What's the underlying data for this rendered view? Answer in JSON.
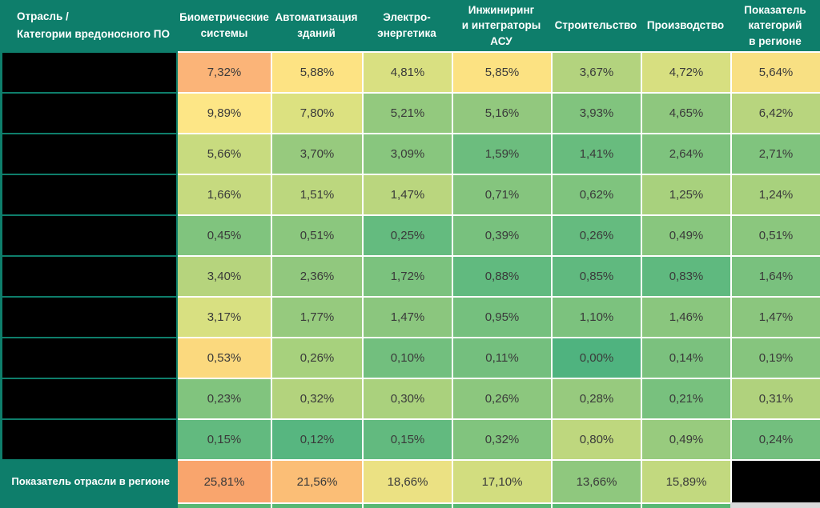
{
  "colors": {
    "header_bg": "#0E7E6B",
    "teal_border": "#11806A",
    "grid_line": "#FFFFFF",
    "redacted_black": "#000000",
    "header_text": "#FFFFFF",
    "cell_text": "#3A3A3A",
    "strip_green": "#57B873",
    "strip_gray": "#D9D9D9"
  },
  "header": {
    "corner": "Отрасль /\nКатегории вредоносного ПО",
    "columns": [
      "Биометрические\nсистемы",
      "Автоматизация\nзданий",
      "Электро-\nэнергетика",
      "Инжиниринг\nи интеграторы АСУ",
      "Строительство",
      "Производство",
      "Показатель\nкатегорий\nв регионе"
    ]
  },
  "rows": [
    {
      "label_redacted": true,
      "values": [
        "7,32%",
        "5,88%",
        "4,81%",
        "5,85%",
        "3,67%",
        "4,72%",
        "5,64%"
      ],
      "colors": [
        "#FBB478",
        "#FDE383",
        "#D9E081",
        "#FCE282",
        "#B3D37E",
        "#D7DF80",
        "#F8E083"
      ]
    },
    {
      "label_redacted": true,
      "values": [
        "9,89%",
        "7,80%",
        "5,21%",
        "5,16%",
        "3,93%",
        "4,65%",
        "6,42%"
      ],
      "colors": [
        "#FDE686",
        "#DCE180",
        "#93C97E",
        "#92C87E",
        "#81C47E",
        "#8EC77E",
        "#B8D57E"
      ]
    },
    {
      "label_redacted": true,
      "values": [
        "5,66%",
        "3,70%",
        "3,09%",
        "1,59%",
        "1,41%",
        "2,64%",
        "2,71%"
      ],
      "colors": [
        "#C8DB7F",
        "#97CA7E",
        "#88C67E",
        "#6CBD7E",
        "#68BC7E",
        "#7EC37E",
        "#80C47E"
      ]
    },
    {
      "label_redacted": true,
      "values": [
        "1,66%",
        "1,51%",
        "1,47%",
        "0,71%",
        "0,62%",
        "1,25%",
        "1,24%"
      ],
      "colors": [
        "#C6DA7F",
        "#BCD77E",
        "#BAD67E",
        "#85C57E",
        "#7FC47E",
        "#A8D17D",
        "#A8D17D"
      ]
    },
    {
      "label_redacted": true,
      "values": [
        "0,45%",
        "0,51%",
        "0,25%",
        "0,39%",
        "0,26%",
        "0,49%",
        "0,51%"
      ],
      "colors": [
        "#80C47E",
        "#8BC77E",
        "#64BB7F",
        "#78C17E",
        "#65BB7F",
        "#88C67E",
        "#8BC77E"
      ]
    },
    {
      "label_redacted": true,
      "values": [
        "3,40%",
        "2,36%",
        "1,72%",
        "0,88%",
        "0,85%",
        "0,83%",
        "1,64%"
      ],
      "colors": [
        "#B6D47D",
        "#91C87E",
        "#7BC27E",
        "#61BA7F",
        "#60B97F",
        "#5FB97F",
        "#79C17E"
      ]
    },
    {
      "label_redacted": true,
      "values": [
        "3,17%",
        "1,77%",
        "1,47%",
        "0,95%",
        "1,10%",
        "1,46%",
        "1,47%"
      ],
      "colors": [
        "#D8E081",
        "#96CA7E",
        "#8BC67E",
        "#75C07E",
        "#7CC27E",
        "#8AC67E",
        "#8BC67E"
      ]
    },
    {
      "label_redacted": true,
      "values": [
        "0,53%",
        "0,26%",
        "0,10%",
        "0,11%",
        "0,00%",
        "0,14%",
        "0,19%"
      ],
      "colors": [
        "#FBD97E",
        "#A7D17D",
        "#72BF7E",
        "#74BF7E",
        "#4FB37F",
        "#7BC17E",
        "#86C57E"
      ]
    },
    {
      "label_redacted": true,
      "values": [
        "0,23%",
        "0,32%",
        "0,30%",
        "0,26%",
        "0,28%",
        "0,21%",
        "0,31%"
      ],
      "colors": [
        "#81C47E",
        "#B3D37D",
        "#AAD17D",
        "#8CC77E",
        "#97CA7E",
        "#78C17E",
        "#B0D27D"
      ]
    },
    {
      "label_redacted": true,
      "values": [
        "0,15%",
        "0,12%",
        "0,15%",
        "0,32%",
        "0,80%",
        "0,49%",
        "0,24%"
      ],
      "colors": [
        "#62BA7F",
        "#57B680",
        "#62BA7F",
        "#81C47E",
        "#BED77E",
        "#98CB7E",
        "#73BF7E"
      ]
    }
  ],
  "total_row": {
    "label": "Показатель отрасли в регионе",
    "values": [
      "25,81%",
      "21,56%",
      "18,66%",
      "17,10%",
      "13,66%",
      "15,89%"
    ],
    "colors": [
      "#F9A56D",
      "#FBBE76",
      "#EBE183",
      "#D2DD7F",
      "#8FC87E",
      "#C2D97F"
    ],
    "last_cell_redacted": true
  },
  "chart_data": {
    "type": "heatmap",
    "title": "Отрасль / Категории вредоносного ПО",
    "columns": [
      "Биометрические системы",
      "Автоматизация зданий",
      "Электро-энергетика",
      "Инжиниринг и интеграторы АСУ",
      "Строительство",
      "Производство",
      "Показатель категорий в регионе"
    ],
    "row_labels_redacted": true,
    "values": [
      [
        7.32,
        5.88,
        4.81,
        5.85,
        3.67,
        4.72,
        5.64
      ],
      [
        9.89,
        7.8,
        5.21,
        5.16,
        3.93,
        4.65,
        6.42
      ],
      [
        5.66,
        3.7,
        3.09,
        1.59,
        1.41,
        2.64,
        2.71
      ],
      [
        1.66,
        1.51,
        1.47,
        0.71,
        0.62,
        1.25,
        1.24
      ],
      [
        0.45,
        0.51,
        0.25,
        0.39,
        0.26,
        0.49,
        0.51
      ],
      [
        3.4,
        2.36,
        1.72,
        0.88,
        0.85,
        0.83,
        1.64
      ],
      [
        3.17,
        1.77,
        1.47,
        0.95,
        1.1,
        1.46,
        1.47
      ],
      [
        0.53,
        0.26,
        0.1,
        0.11,
        0.0,
        0.14,
        0.19
      ],
      [
        0.23,
        0.32,
        0.3,
        0.26,
        0.28,
        0.21,
        0.31
      ],
      [
        0.15,
        0.12,
        0.15,
        0.32,
        0.8,
        0.49,
        0.24
      ]
    ],
    "totals": {
      "label": "Показатель отрасли в регионе",
      "values": [
        25.81,
        21.56,
        18.66,
        17.1,
        13.66,
        15.89,
        null
      ]
    },
    "unit": "%",
    "color_scale": "green-yellow-orange (low to high)"
  }
}
